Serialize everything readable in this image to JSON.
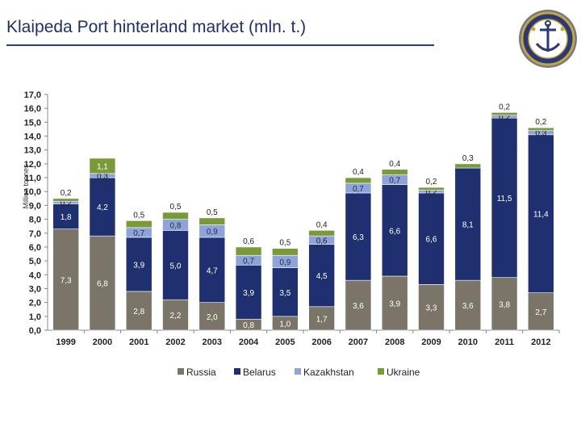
{
  "title": "Klaipeda Port hinterland market (mln. t.)",
  "colors": {
    "russia": "#7a7568",
    "belarus": "#1f3070",
    "kazakhstan": "#8ea3d8",
    "ukraine": "#7a9a3a",
    "accent": "#2b3a8c"
  },
  "chart_data": {
    "type": "bar",
    "stacked": true,
    "title": "Klaipeda Port hinterland market (mln. t.)",
    "xlabel": "",
    "ylabel": "Million tonnes",
    "ylim": [
      0,
      17
    ],
    "yticks": [
      "0,0",
      "1,0",
      "2,0",
      "3,0",
      "4,0",
      "5,0",
      "6,0",
      "7,0",
      "8,0",
      "9,0",
      "10,0",
      "11,0",
      "12,0",
      "13,0",
      "14,0",
      "15,0",
      "16,0",
      "17,0"
    ],
    "categories": [
      "1999",
      "2000",
      "2001",
      "2002",
      "2003",
      "2004",
      "2005",
      "2006",
      "2007",
      "2008",
      "2009",
      "2010",
      "2011",
      "2012"
    ],
    "series": [
      {
        "name": "Russia",
        "values": [
          7.3,
          6.8,
          2.8,
          2.2,
          2.0,
          0.8,
          1.0,
          1.7,
          3.6,
          3.9,
          3.3,
          3.6,
          3.8,
          2.7
        ],
        "labels": [
          "7,3",
          "6,8",
          "2,8",
          "2,2",
          "2,0",
          "0,8",
          "1,0",
          "1,7",
          "3,6",
          "3,9",
          "3,3",
          "3,6",
          "3,8",
          "2,7"
        ]
      },
      {
        "name": "Belarus",
        "values": [
          1.8,
          4.2,
          3.9,
          5.0,
          4.7,
          3.9,
          3.5,
          4.5,
          6.3,
          6.6,
          6.6,
          8.1,
          11.5,
          11.4
        ],
        "labels": [
          "1,8",
          "4,2",
          "3,9",
          "5,0",
          "4,7",
          "3,9",
          "3,5",
          "4,5",
          "6,3",
          "6,6",
          "6,6",
          "8,1",
          "11,5",
          "11,4"
        ]
      },
      {
        "name": "Kazakhstan",
        "values": [
          0.2,
          0.3,
          0.7,
          0.8,
          0.9,
          0.7,
          0.9,
          0.6,
          0.7,
          0.7,
          0.2,
          0.0,
          0.2,
          0.3
        ],
        "labels": [
          "0,2",
          "0,3",
          "0,7",
          "0,8",
          "0,9",
          "0,7",
          "0,9",
          "0,6",
          "0,7",
          "0,7",
          "0,2",
          "",
          "0,2",
          "0,3"
        ]
      },
      {
        "name": "Ukraine",
        "values": [
          0.2,
          1.1,
          0.5,
          0.5,
          0.5,
          0.6,
          0.5,
          0.4,
          0.4,
          0.4,
          0.2,
          0.3,
          0.2,
          0.2
        ],
        "labels": [
          "0,2",
          "1,1",
          "0,5",
          "0,5",
          "0,5",
          "0,6",
          "0,5",
          "0,4",
          "0,4",
          "0,4",
          "0,2",
          "0,3",
          "0,2",
          "0,2"
        ]
      }
    ],
    "legend": {
      "position": "bottom",
      "entries": [
        "Russia",
        "Belarus",
        "Kazakhstan",
        "Ukraine"
      ]
    },
    "grid": false
  }
}
